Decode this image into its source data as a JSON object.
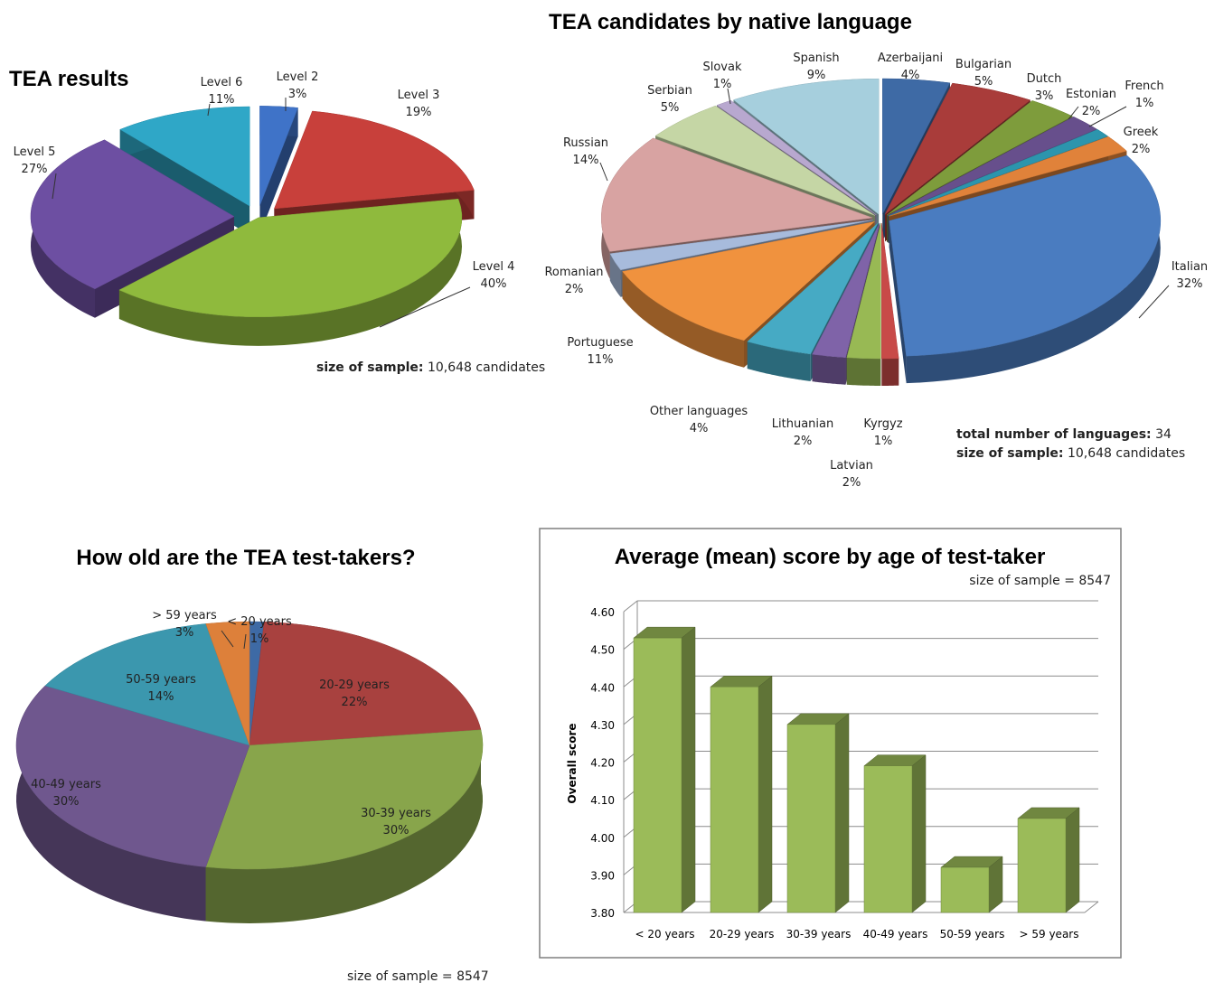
{
  "chart_data": [
    {
      "id": "results",
      "type": "pie",
      "title": "TEA results",
      "slices": [
        {
          "label": "Level 2",
          "value": 3,
          "text": "3%",
          "color": "#3f73c8"
        },
        {
          "label": "Level 3",
          "value": 19,
          "text": "19%",
          "color": "#c8403b"
        },
        {
          "label": "Level 4",
          "value": 40,
          "text": "40%",
          "color": "#8fba3d"
        },
        {
          "label": "Level 5",
          "value": 27,
          "text": "27%",
          "color": "#6d4fa2"
        },
        {
          "label": "Level 6",
          "value": 11,
          "text": "11%",
          "color": "#2fa7c7"
        }
      ],
      "note_bold": "size of sample:",
      "note_text": "10,648 candidates"
    },
    {
      "id": "languages",
      "type": "pie",
      "title": "TEA candidates by native language",
      "slices": [
        {
          "label": "Azerbaijani",
          "value": 4,
          "text": "4%",
          "color": "#3e6aa5"
        },
        {
          "label": "Bulgarian",
          "value": 5,
          "text": "5%",
          "color": "#a93c3a"
        },
        {
          "label": "Dutch",
          "value": 3,
          "text": "3%",
          "color": "#7e9c3c"
        },
        {
          "label": "Estonian",
          "value": 2,
          "text": "2%",
          "color": "#674f8c"
        },
        {
          "label": "French",
          "value": 1,
          "text": "1%",
          "color": "#2c95ad"
        },
        {
          "label": "Greek",
          "value": 2,
          "text": "2%",
          "color": "#e0823a"
        },
        {
          "label": "Italian",
          "value": 32,
          "text": "32%",
          "color": "#4a7cc0"
        },
        {
          "label": "Kyrgyz",
          "value": 1,
          "text": "1%",
          "color": "#c84a48"
        },
        {
          "label": "Latvian",
          "value": 2,
          "text": "2%",
          "color": "#98b954"
        },
        {
          "label": "Lithuanian",
          "value": 2,
          "text": "2%",
          "color": "#7f63a8"
        },
        {
          "label": "Other languages",
          "value": 4,
          "text": "4%",
          "color": "#46aac4"
        },
        {
          "label": "Portuguese",
          "value": 11,
          "text": "11%",
          "color": "#f0923e"
        },
        {
          "label": "Romanian",
          "value": 2,
          "text": "2%",
          "color": "#a7bbdc"
        },
        {
          "label": "Russian",
          "value": 14,
          "text": "14%",
          "color": "#d8a3a2"
        },
        {
          "label": "Serbian",
          "value": 5,
          "text": "5%",
          "color": "#c5d6a5"
        },
        {
          "label": "Slovak",
          "value": 1,
          "text": "1%",
          "color": "#b8a8cf"
        },
        {
          "label": "Spanish",
          "value": 9,
          "text": "9%",
          "color": "#a6cfdd"
        }
      ],
      "note1_bold": "total number of languages:",
      "note1_text": "34",
      "note2_bold": "size of sample:",
      "note2_text": "10,648 candidates"
    },
    {
      "id": "ages",
      "type": "pie",
      "title": "How old are the TEA test-takers?",
      "slices": [
        {
          "label": "< 20 years",
          "value": 1,
          "text": "1%",
          "color": "#3e6aa5"
        },
        {
          "label": "20-29 years",
          "value": 22,
          "text": "22%",
          "color": "#a8413f"
        },
        {
          "label": "30-39 years",
          "value": 30,
          "text": "30%",
          "color": "#88a54b"
        },
        {
          "label": "40-49 years",
          "value": 30,
          "text": "30%",
          "color": "#6f578e"
        },
        {
          "label": "50-59 years",
          "value": 14,
          "text": "14%",
          "color": "#3b97ae"
        },
        {
          "label": "> 59 years",
          "value": 3,
          "text": "3%",
          "color": "#dd803a"
        }
      ],
      "note": "size of sample = 8547"
    },
    {
      "id": "mean_score",
      "type": "bar",
      "title": "Average (mean) score by age of test-taker",
      "subtitle": "size of sample = 8547",
      "ylabel": "Overall score",
      "ylim": [
        3.8,
        4.6
      ],
      "yticks": [
        "3.80",
        "3.90",
        "4.00",
        "4.10",
        "4.20",
        "4.30",
        "4.40",
        "4.50",
        "4.60"
      ],
      "categories": [
        "< 20 years",
        "20-29 years",
        "30-39 years",
        "40-49 years",
        "50-59 years",
        "> 59 years"
      ],
      "values": [
        4.53,
        4.4,
        4.3,
        4.19,
        3.92,
        4.05
      ],
      "bar_color": "#9bbb59",
      "grid": true
    }
  ]
}
